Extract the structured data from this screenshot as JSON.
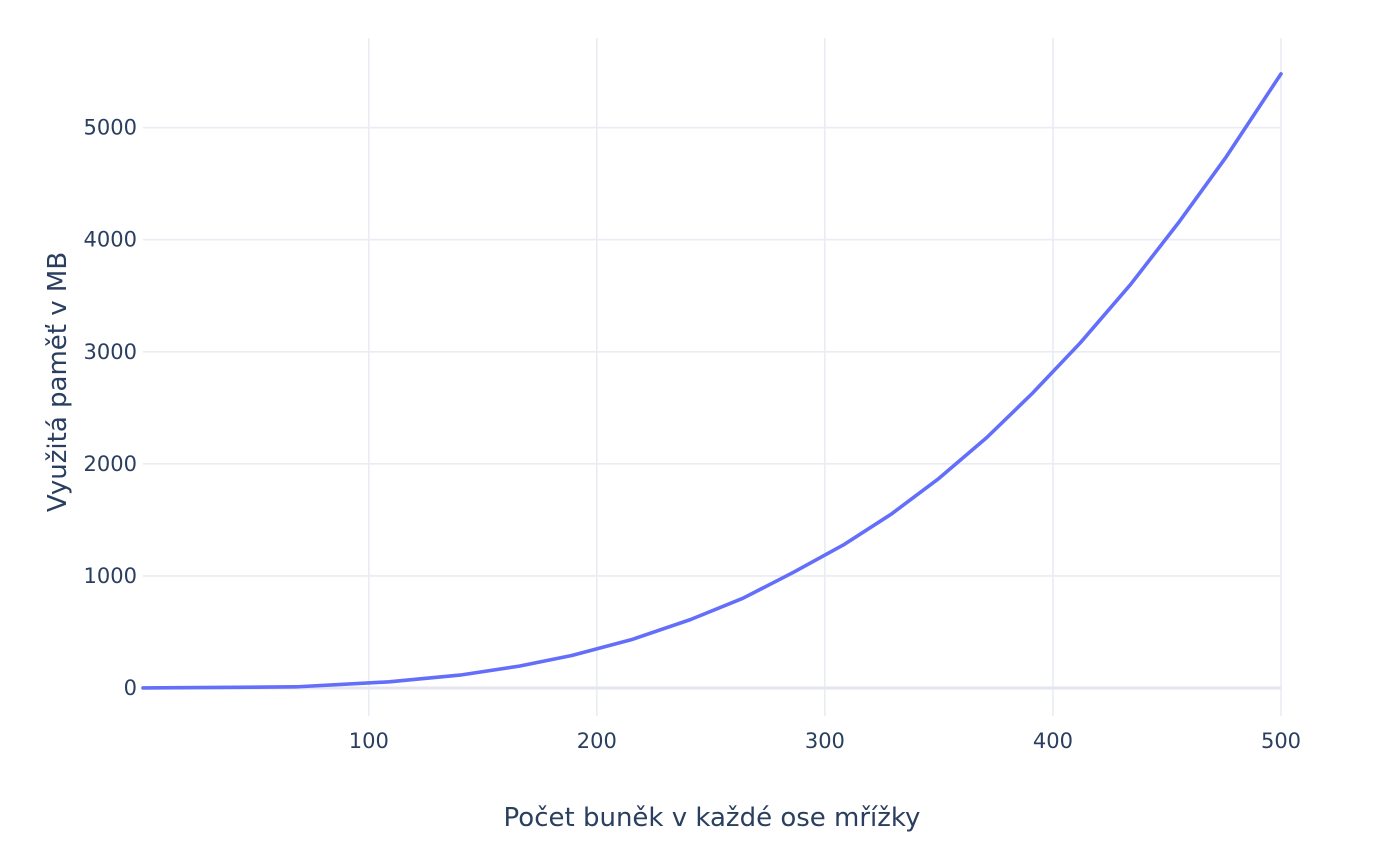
{
  "chart_data": {
    "type": "line",
    "title": "",
    "xlabel": "Počet buněk v každé ose mřížky",
    "ylabel": "Využitá paměť v MB",
    "xlim": [
      1,
      500
    ],
    "ylim": [
      -250,
      5800
    ],
    "x_ticks": [
      100,
      200,
      300,
      400,
      500
    ],
    "y_ticks": [
      0,
      1000,
      2000,
      3000,
      4000,
      5000
    ],
    "grid": true,
    "legend": "none",
    "series": [
      {
        "color": "#636efa",
        "x": [
          1,
          68,
          109,
          140,
          166,
          189,
          215,
          241,
          264,
          286,
          308,
          329,
          350,
          371,
          391,
          412,
          434,
          455,
          476,
          500
        ],
        "y": [
          0,
          10,
          55,
          115,
          195,
          290,
          430,
          610,
          800,
          1030,
          1275,
          1550,
          1870,
          2235,
          2630,
          3080,
          3600,
          4150,
          4740,
          5480
        ]
      }
    ]
  }
}
